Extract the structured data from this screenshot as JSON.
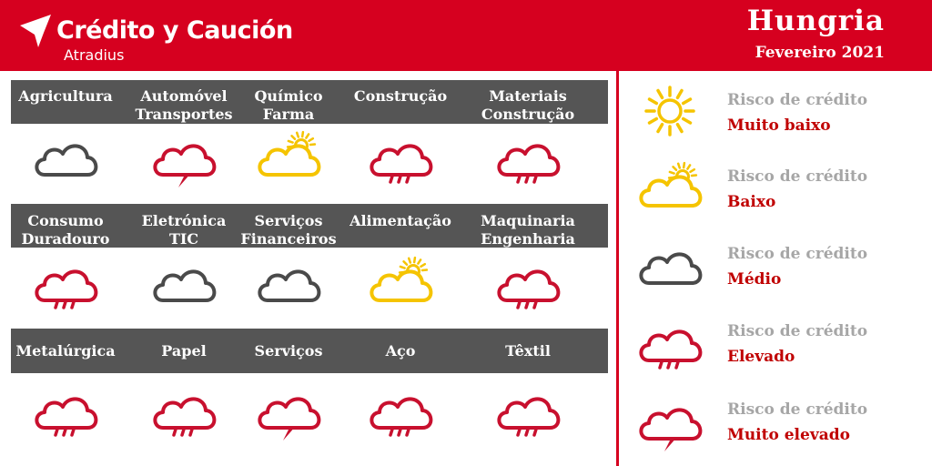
{
  "header": {
    "brand": "Crédito y Caución",
    "brand_sub": "Atradius",
    "country": "Hungria",
    "date": "Fevereiro 2021"
  },
  "colors": {
    "header_red": "#d6001f",
    "band_gray": "#555555",
    "very_low_yellow": "#f5c400",
    "low_yellow": "#f5c400",
    "medium_gray": "#4a4a4a",
    "high_red": "#c8102e",
    "legend_heading_gray": "#a6a6a6",
    "legend_level_red": "#c00000"
  },
  "sectors": [
    {
      "lines": [
        "Agricultura",
        ""
      ],
      "risk": "medium",
      "icon": "cloud-icon"
    },
    {
      "lines": [
        "Automóvel",
        "Transportes"
      ],
      "risk": "very-high",
      "icon": "storm-cloud-icon"
    },
    {
      "lines": [
        "Químico",
        "Farma"
      ],
      "risk": "low",
      "icon": "sun-cloud-icon"
    },
    {
      "lines": [
        "Construção",
        ""
      ],
      "risk": "high",
      "icon": "rain-cloud-icon"
    },
    {
      "lines": [
        "Materiais",
        "Construção"
      ],
      "risk": "high",
      "icon": "rain-cloud-icon"
    },
    {
      "lines": [
        "Consumo",
        "Duradouro"
      ],
      "risk": "high",
      "icon": "rain-cloud-icon"
    },
    {
      "lines": [
        "Eletrónica",
        "TIC"
      ],
      "risk": "medium",
      "icon": "cloud-icon"
    },
    {
      "lines": [
        "Serviços",
        "Financeiros"
      ],
      "risk": "medium",
      "icon": "cloud-icon"
    },
    {
      "lines": [
        "Alimentação",
        ""
      ],
      "risk": "low",
      "icon": "sun-cloud-icon"
    },
    {
      "lines": [
        "Maquinaria",
        "Engenharia"
      ],
      "risk": "high",
      "icon": "rain-cloud-icon"
    },
    {
      "lines": [
        "Metalúrgica",
        ""
      ],
      "risk": "high",
      "icon": "rain-cloud-icon"
    },
    {
      "lines": [
        "Papel",
        ""
      ],
      "risk": "high",
      "icon": "rain-cloud-icon"
    },
    {
      "lines": [
        "Serviços",
        ""
      ],
      "risk": "very-high",
      "icon": "storm-cloud-icon"
    },
    {
      "lines": [
        "Aço",
        ""
      ],
      "risk": "high",
      "icon": "rain-cloud-icon"
    },
    {
      "lines": [
        "Têxtil",
        ""
      ],
      "risk": "high",
      "icon": "rain-cloud-icon"
    }
  ],
  "legend": [
    {
      "heading": "Risco de crédito",
      "level": "Muito baixo",
      "icon": "sun-icon"
    },
    {
      "heading": "Risco de crédito",
      "level": "Baixo",
      "icon": "sun-cloud-icon"
    },
    {
      "heading": "Risco de crédito",
      "level": "Médio",
      "icon": "cloud-icon"
    },
    {
      "heading": "Risco de crédito",
      "level": "Elevado",
      "icon": "rain-cloud-icon"
    },
    {
      "heading": "Risco de crédito",
      "level": "Muito elevado",
      "icon": "storm-cloud-icon"
    }
  ]
}
